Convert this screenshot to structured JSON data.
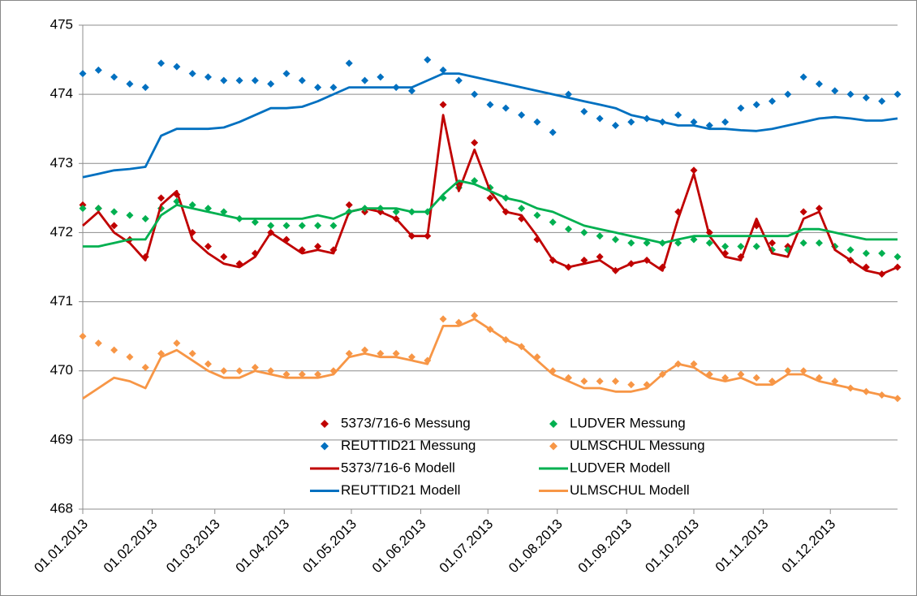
{
  "chart_data": {
    "type": "line",
    "x": [
      "2013-01-01",
      "2013-01-08",
      "2013-01-15",
      "2013-01-22",
      "2013-01-29",
      "2013-02-05",
      "2013-02-12",
      "2013-02-19",
      "2013-02-26",
      "2013-03-05",
      "2013-03-12",
      "2013-03-19",
      "2013-03-26",
      "2013-04-02",
      "2013-04-09",
      "2013-04-16",
      "2013-04-23",
      "2013-04-30",
      "2013-05-07",
      "2013-05-14",
      "2013-05-21",
      "2013-05-28",
      "2013-06-04",
      "2013-06-11",
      "2013-06-18",
      "2013-06-25",
      "2013-07-02",
      "2013-07-09",
      "2013-07-16",
      "2013-07-23",
      "2013-07-30",
      "2013-08-06",
      "2013-08-13",
      "2013-08-20",
      "2013-08-27",
      "2013-09-03",
      "2013-09-10",
      "2013-09-17",
      "2013-09-24",
      "2013-10-01",
      "2013-10-08",
      "2013-10-15",
      "2013-10-22",
      "2013-10-29",
      "2013-11-05",
      "2013-11-12",
      "2013-11-19",
      "2013-11-26",
      "2013-12-03",
      "2013-12-10",
      "2013-12-17",
      "2013-12-24",
      "2013-12-31"
    ],
    "series": [
      {
        "name": "5373/716-6 Messung",
        "color": "#c00000",
        "marker": "diamond",
        "values": [
          472.4,
          472.35,
          472.1,
          471.9,
          471.65,
          472.5,
          472.55,
          472.0,
          471.8,
          471.65,
          471.55,
          471.7,
          472.0,
          471.9,
          471.75,
          471.8,
          471.75,
          472.4,
          472.3,
          472.3,
          472.2,
          471.95,
          471.95,
          473.85,
          472.7,
          473.3,
          472.5,
          472.3,
          472.2,
          471.9,
          471.6,
          471.5,
          471.6,
          471.65,
          471.45,
          471.55,
          471.6,
          471.5,
          472.3,
          472.9,
          472.0,
          471.7,
          471.65,
          472.1,
          471.85,
          471.8,
          472.3,
          472.35,
          471.8,
          471.6,
          471.5,
          471.4,
          471.5
        ]
      },
      {
        "name": "LUDVER Messung",
        "color": "#00b050",
        "marker": "diamond",
        "values": [
          472.35,
          472.35,
          472.3,
          472.25,
          472.2,
          472.35,
          472.45,
          472.4,
          472.35,
          472.3,
          472.2,
          472.15,
          472.1,
          472.1,
          472.1,
          472.1,
          472.1,
          472.3,
          472.35,
          472.35,
          472.3,
          472.3,
          472.3,
          472.5,
          472.65,
          472.75,
          472.65,
          472.5,
          472.35,
          472.25,
          472.15,
          472.05,
          472.0,
          471.95,
          471.9,
          471.85,
          471.85,
          471.85,
          471.85,
          471.9,
          471.85,
          471.8,
          471.8,
          471.8,
          471.75,
          471.75,
          471.85,
          471.85,
          471.8,
          471.75,
          471.7,
          471.7,
          471.65
        ]
      },
      {
        "name": "REUTTID21 Messung",
        "color": "#0070c0",
        "marker": "diamond",
        "values": [
          474.3,
          474.35,
          474.25,
          474.15,
          474.1,
          474.45,
          474.4,
          474.3,
          474.25,
          474.2,
          474.2,
          474.2,
          474.15,
          474.3,
          474.2,
          474.1,
          474.1,
          474.45,
          474.2,
          474.25,
          474.1,
          474.05,
          474.5,
          474.35,
          474.2,
          474.0,
          473.85,
          473.8,
          473.7,
          473.6,
          473.45,
          474.0,
          473.75,
          473.65,
          473.55,
          473.6,
          473.65,
          473.6,
          473.7,
          473.6,
          473.55,
          473.6,
          473.8,
          473.85,
          473.9,
          474.0,
          474.25,
          474.15,
          474.05,
          474.0,
          473.95,
          473.9,
          474.0
        ]
      },
      {
        "name": "ULMSCHUL Messung",
        "color": "#f79646",
        "marker": "diamond",
        "values": [
          470.5,
          470.4,
          470.3,
          470.2,
          470.05,
          470.25,
          470.4,
          470.25,
          470.1,
          470.0,
          470.0,
          470.05,
          470.0,
          469.95,
          469.95,
          469.95,
          470.0,
          470.25,
          470.3,
          470.25,
          470.25,
          470.2,
          470.15,
          470.75,
          470.7,
          470.8,
          470.6,
          470.45,
          470.35,
          470.2,
          470.0,
          469.9,
          469.85,
          469.85,
          469.85,
          469.8,
          469.8,
          469.95,
          470.1,
          470.1,
          469.95,
          469.9,
          469.95,
          469.9,
          469.85,
          470.0,
          470.0,
          469.9,
          469.85,
          469.75,
          469.7,
          469.65,
          469.6
        ]
      },
      {
        "name": "5373/716-6 Modell",
        "color": "#c00000",
        "marker": "line",
        "values": [
          472.1,
          472.3,
          472.0,
          471.85,
          471.6,
          472.4,
          472.6,
          471.9,
          471.7,
          471.55,
          471.5,
          471.65,
          472.0,
          471.85,
          471.7,
          471.75,
          471.7,
          472.3,
          472.35,
          472.3,
          472.2,
          471.95,
          471.95,
          473.7,
          472.6,
          473.2,
          472.6,
          472.3,
          472.25,
          471.95,
          471.6,
          471.5,
          471.55,
          471.6,
          471.45,
          471.55,
          471.6,
          471.45,
          472.2,
          472.85,
          471.95,
          471.65,
          471.6,
          472.2,
          471.7,
          471.65,
          472.2,
          472.3,
          471.75,
          471.6,
          471.45,
          471.4,
          471.5
        ]
      },
      {
        "name": "LUDVER Modell",
        "color": "#00b050",
        "marker": "line",
        "values": [
          471.8,
          471.8,
          471.85,
          471.9,
          471.9,
          472.25,
          472.4,
          472.35,
          472.3,
          472.25,
          472.2,
          472.2,
          472.2,
          472.2,
          472.2,
          472.25,
          472.2,
          472.3,
          472.35,
          472.35,
          472.35,
          472.3,
          472.3,
          472.55,
          472.75,
          472.7,
          472.6,
          472.5,
          472.45,
          472.35,
          472.3,
          472.2,
          472.1,
          472.05,
          472.0,
          471.95,
          471.9,
          471.85,
          471.9,
          471.95,
          471.95,
          471.95,
          471.95,
          471.95,
          471.95,
          471.95,
          472.05,
          472.05,
          472.0,
          471.95,
          471.9,
          471.9,
          471.9
        ]
      },
      {
        "name": "REUTTID21 Modell",
        "color": "#0070c0",
        "marker": "line",
        "values": [
          472.8,
          472.85,
          472.9,
          472.92,
          472.95,
          473.4,
          473.5,
          473.5,
          473.5,
          473.52,
          473.6,
          473.7,
          473.8,
          473.8,
          473.82,
          473.9,
          474.0,
          474.1,
          474.1,
          474.1,
          474.1,
          474.1,
          474.2,
          474.3,
          474.3,
          474.25,
          474.2,
          474.15,
          474.1,
          474.05,
          474.0,
          473.95,
          473.9,
          473.85,
          473.8,
          473.7,
          473.65,
          473.6,
          473.55,
          473.55,
          473.5,
          473.5,
          473.48,
          473.47,
          473.5,
          473.55,
          473.6,
          473.65,
          473.67,
          473.65,
          473.62,
          473.62,
          473.65
        ]
      },
      {
        "name": "ULMSCHUL Modell",
        "color": "#f79646",
        "marker": "line",
        "values": [
          469.6,
          469.75,
          469.9,
          469.85,
          469.75,
          470.2,
          470.3,
          470.15,
          470.0,
          469.9,
          469.9,
          470.0,
          469.95,
          469.9,
          469.9,
          469.9,
          469.95,
          470.2,
          470.25,
          470.2,
          470.2,
          470.15,
          470.1,
          470.65,
          470.65,
          470.75,
          470.6,
          470.45,
          470.35,
          470.15,
          469.95,
          469.85,
          469.75,
          469.75,
          469.7,
          469.7,
          469.75,
          469.95,
          470.1,
          470.05,
          469.9,
          469.85,
          469.9,
          469.8,
          469.8,
          469.95,
          469.95,
          469.85,
          469.8,
          469.75,
          469.7,
          469.65,
          469.6
        ]
      }
    ],
    "xlim": [
      "2013-01-01",
      "2013-12-31"
    ],
    "xticks": [
      {
        "value": "2013-01-01",
        "label": "01.01.2013"
      },
      {
        "value": "2013-02-01",
        "label": "01.02.2013"
      },
      {
        "value": "2013-03-01",
        "label": "01.03.2013"
      },
      {
        "value": "2013-04-01",
        "label": "01.04.2013"
      },
      {
        "value": "2013-05-01",
        "label": "01.05.2013"
      },
      {
        "value": "2013-06-01",
        "label": "01.06.2013"
      },
      {
        "value": "2013-07-01",
        "label": "01.07.2013"
      },
      {
        "value": "2013-08-01",
        "label": "01.08.2013"
      },
      {
        "value": "2013-09-01",
        "label": "01.09.2013"
      },
      {
        "value": "2013-10-01",
        "label": "01.10.2013"
      },
      {
        "value": "2013-11-01",
        "label": "01.11.2013"
      },
      {
        "value": "2013-12-01",
        "label": "01.12.2013"
      }
    ],
    "ylim": [
      468,
      475
    ],
    "yticks": [
      468,
      469,
      470,
      471,
      472,
      473,
      474,
      475
    ],
    "grid": true,
    "legend": "bottom"
  }
}
